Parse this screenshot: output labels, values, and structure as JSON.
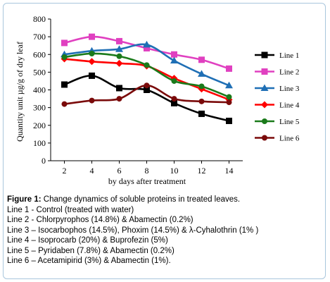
{
  "chart_data": {
    "type": "line",
    "title": "",
    "xlabel": "by days after treatment",
    "ylabel": "Quantity unit µg/g of dry leaf",
    "x": [
      2,
      4,
      6,
      8,
      10,
      12,
      14
    ],
    "ylim": [
      0,
      800
    ],
    "yticks": [
      0,
      100,
      200,
      300,
      400,
      500,
      600,
      700,
      800
    ],
    "grid": false,
    "legend_position": "right",
    "series": [
      {
        "name": "Line 1",
        "color": "#000000",
        "marker": "square",
        "values": [
          430,
          480,
          410,
          400,
          325,
          265,
          225
        ]
      },
      {
        "name": "Line 2",
        "color": "#e040c0",
        "marker": "square",
        "values": [
          665,
          700,
          675,
          635,
          600,
          570,
          520
        ]
      },
      {
        "name": "Line 3",
        "color": "#1f6fb5",
        "marker": "triangle",
        "values": [
          600,
          620,
          630,
          655,
          565,
          490,
          425
        ]
      },
      {
        "name": "Line 4",
        "color": "#ff0000",
        "marker": "diamond",
        "values": [
          575,
          560,
          550,
          535,
          465,
          405,
          345
        ]
      },
      {
        "name": "Line 5",
        "color": "#1a7a1a",
        "marker": "circle",
        "values": [
          585,
          605,
          590,
          540,
          450,
          420,
          360
        ]
      },
      {
        "name": "Line 6",
        "color": "#7a0a0a",
        "marker": "circle",
        "values": [
          320,
          340,
          350,
          425,
          350,
          335,
          330
        ]
      }
    ]
  },
  "caption": {
    "label": "Figure 1:",
    "text": " Change dynamics of soluble proteins in treated leaves.",
    "lines": [
      "Line 1 - Control (treated with water)",
      "Line 2 - Chlorpyrophos (14.8%) & Abamectin (0.2%)",
      "Line 3 – Isocarbophos (14.5%), Phoxim (14.5%) & λ-Cyhalothrin (1% )",
      "Line 4 – Isoprocarb (20%) & Buprofezin (5%)",
      "Line 5 – Pyridaben (7.8%) & Abamectin (0.2%)",
      "Line 6 – Acetamipirid (3%) & Abamectin (1%)."
    ]
  }
}
